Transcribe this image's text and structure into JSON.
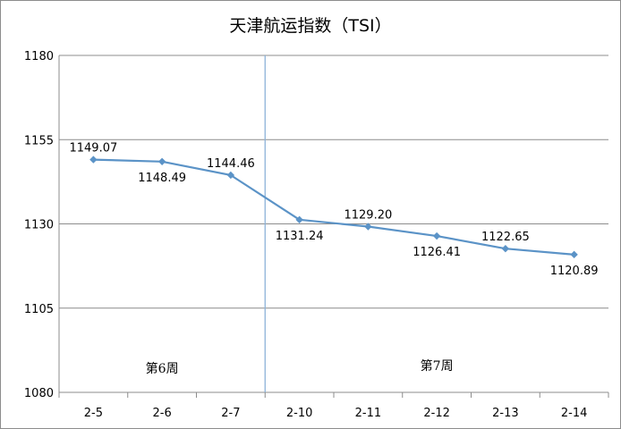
{
  "chart_data": {
    "type": "line",
    "title": "天津航运指数（TSI）",
    "categories": [
      "2-5",
      "2-6",
      "2-7",
      "2-10",
      "2-11",
      "2-12",
      "2-13",
      "2-14"
    ],
    "series": [
      {
        "values": [
          1149.07,
          1148.49,
          1144.46,
          1131.24,
          1129.2,
          1126.41,
          1122.65,
          1120.89
        ],
        "labels": [
          "1149.07",
          "1148.49",
          "1144.46",
          "1131.24",
          "1129.20",
          "1126.41",
          "1122.65",
          "1120.89"
        ],
        "color": "#5b93c7"
      }
    ],
    "ylim": [
      1080,
      1180
    ],
    "yticks": [
      1080,
      1105,
      1130,
      1155,
      1180
    ],
    "grid": true,
    "legend": "none",
    "week_labels": [
      "第6周",
      "第7周"
    ],
    "separator_after_category": "2-7",
    "separator_color": "#8db3d9"
  }
}
